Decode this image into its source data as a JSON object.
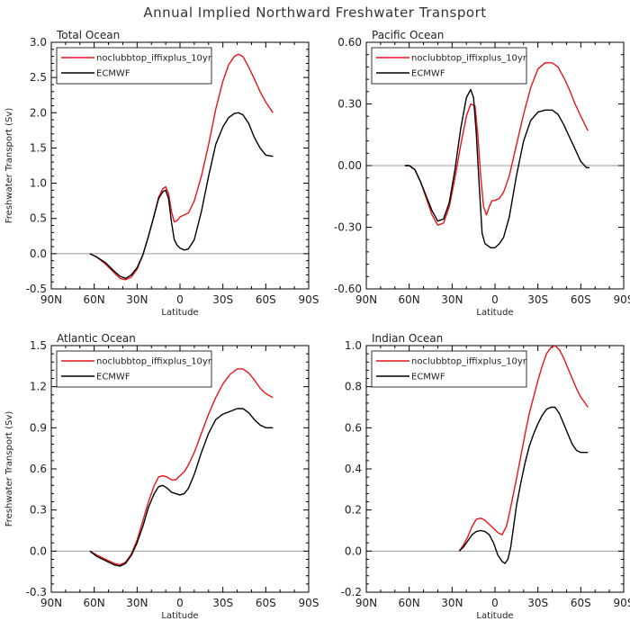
{
  "figure": {
    "title": "Annual Implied Northward Freshwater Transport"
  },
  "colors": {
    "model": "#e8141a",
    "obs": "#000000",
    "zero_line": "#999999"
  },
  "chart_data": [
    {
      "type": "line",
      "title": "Total Ocean",
      "xlabel": "Latitude",
      "ylabel": "Freshwater Transport (Sv)",
      "xlim": [
        90,
        -90
      ],
      "ylim": [
        -0.5,
        3.0
      ],
      "xticks": [
        90,
        60,
        30,
        0,
        -30,
        -60,
        -90
      ],
      "xtick_labels": [
        "90N",
        "60N",
        "30N",
        "0",
        "30S",
        "60S",
        "90S"
      ],
      "yticks": [
        -0.5,
        0.0,
        0.5,
        1.0,
        1.5,
        2.0,
        2.5,
        3.0
      ],
      "ytick_labels": [
        "-0.5",
        "0.0",
        "0.5",
        "1.0",
        "1.5",
        "2.0",
        "2.5",
        "3.0"
      ],
      "grid": false,
      "legend": "top-left",
      "series": [
        {
          "name": "noclubbtop_iffixplus_10yr",
          "color": "#e8141a",
          "x": [
            63,
            58,
            52,
            46,
            42,
            38,
            34,
            30,
            26,
            22,
            18,
            15,
            12,
            10,
            8,
            6,
            4,
            2,
            0,
            -3,
            -6,
            -10,
            -15,
            -20,
            -25,
            -30,
            -34,
            -38,
            -41,
            -44,
            -48,
            -52,
            -56,
            -60,
            -65
          ],
          "y": [
            0.0,
            -0.05,
            -0.15,
            -0.27,
            -0.35,
            -0.37,
            -0.33,
            -0.22,
            -0.02,
            0.25,
            0.55,
            0.8,
            0.92,
            0.95,
            0.85,
            0.6,
            0.45,
            0.47,
            0.52,
            0.55,
            0.58,
            0.75,
            1.1,
            1.55,
            2.05,
            2.45,
            2.68,
            2.8,
            2.83,
            2.8,
            2.65,
            2.48,
            2.3,
            2.15,
            2.0
          ]
        },
        {
          "name": "ECMWF",
          "color": "#000000",
          "x": [
            63,
            58,
            52,
            46,
            42,
            38,
            34,
            30,
            26,
            22,
            18,
            15,
            12,
            10,
            8,
            6,
            4,
            2,
            0,
            -3,
            -6,
            -10,
            -15,
            -20,
            -25,
            -30,
            -34,
            -38,
            -41,
            -44,
            -48,
            -52,
            -56,
            -60,
            -65
          ],
          "y": [
            0.0,
            -0.05,
            -0.13,
            -0.25,
            -0.32,
            -0.35,
            -0.3,
            -0.2,
            -0.02,
            0.25,
            0.55,
            0.78,
            0.88,
            0.9,
            0.78,
            0.45,
            0.2,
            0.12,
            0.08,
            0.05,
            0.07,
            0.2,
            0.6,
            1.1,
            1.55,
            1.8,
            1.93,
            1.99,
            2.0,
            1.97,
            1.85,
            1.65,
            1.5,
            1.4,
            1.38
          ]
        }
      ]
    },
    {
      "type": "line",
      "title": "Pacific Ocean",
      "xlabel": "Latitude",
      "ylabel": "",
      "xlim": [
        90,
        -90
      ],
      "ylim": [
        -0.6,
        0.6
      ],
      "xticks": [
        90,
        60,
        30,
        0,
        -30,
        -60,
        -90
      ],
      "xtick_labels": [
        "90N",
        "60N",
        "30N",
        "0",
        "30S",
        "60S",
        "90S"
      ],
      "yticks": [
        -0.6,
        -0.3,
        0.0,
        0.3,
        0.6
      ],
      "ytick_labels": [
        "-0.60",
        "-0.30",
        "0.00",
        "0.30",
        "0.60"
      ],
      "grid": false,
      "legend": "top-left",
      "series": [
        {
          "name": "noclubbtop_iffixplus_10yr",
          "color": "#e8141a",
          "x": [
            63,
            60,
            56,
            52,
            48,
            44,
            40,
            36,
            32,
            28,
            24,
            20,
            17,
            14,
            12,
            10,
            8,
            6,
            4,
            2,
            0,
            -3,
            -6,
            -10,
            -15,
            -20,
            -25,
            -30,
            -35,
            -40,
            -44,
            -48,
            -52,
            -56,
            -60,
            -65
          ],
          "y": [
            0.0,
            0.0,
            -0.02,
            -0.08,
            -0.16,
            -0.24,
            -0.29,
            -0.28,
            -0.2,
            -0.06,
            0.1,
            0.24,
            0.3,
            0.29,
            0.15,
            -0.05,
            -0.2,
            -0.24,
            -0.2,
            -0.17,
            -0.17,
            -0.16,
            -0.13,
            -0.05,
            0.1,
            0.25,
            0.38,
            0.47,
            0.5,
            0.5,
            0.48,
            0.43,
            0.37,
            0.3,
            0.24,
            0.17
          ]
        },
        {
          "name": "ECMWF",
          "color": "#000000",
          "x": [
            63,
            60,
            56,
            52,
            48,
            44,
            40,
            36,
            32,
            28,
            24,
            20,
            17,
            15,
            13,
            11,
            9,
            7,
            5,
            3,
            0,
            -3,
            -6,
            -10,
            -15,
            -20,
            -25,
            -30,
            -35,
            -40,
            -44,
            -48,
            -52,
            -56,
            -60,
            -64,
            -66
          ],
          "y": [
            0.0,
            0.0,
            -0.02,
            -0.08,
            -0.15,
            -0.22,
            -0.27,
            -0.26,
            -0.18,
            -0.02,
            0.18,
            0.33,
            0.37,
            0.33,
            0.15,
            -0.1,
            -0.33,
            -0.38,
            -0.39,
            -0.4,
            -0.4,
            -0.38,
            -0.35,
            -0.25,
            -0.05,
            0.12,
            0.22,
            0.26,
            0.27,
            0.27,
            0.25,
            0.2,
            0.14,
            0.08,
            0.02,
            -0.01,
            -0.01
          ]
        }
      ]
    },
    {
      "type": "line",
      "title": "Atlantic Ocean",
      "xlabel": "Latitude",
      "ylabel": "Freshwater Transport (Sv)",
      "xlim": [
        90,
        -90
      ],
      "ylim": [
        -0.3,
        1.5
      ],
      "xticks": [
        90,
        60,
        30,
        0,
        -30,
        -60,
        -90
      ],
      "xtick_labels": [
        "90N",
        "60N",
        "30N",
        "0",
        "30S",
        "60S",
        "90S"
      ],
      "yticks": [
        -0.3,
        0.0,
        0.3,
        0.6,
        0.9,
        1.2,
        1.5
      ],
      "ytick_labels": [
        "-0.3",
        "0.0",
        "0.3",
        "0.6",
        "0.9",
        "1.2",
        "1.5"
      ],
      "grid": false,
      "legend": "top-left",
      "series": [
        {
          "name": "noclubbtop_iffixplus_10yr",
          "color": "#e8141a",
          "x": [
            63,
            58,
            52,
            46,
            42,
            38,
            34,
            30,
            26,
            22,
            18,
            15,
            12,
            9,
            6,
            3,
            0,
            -3,
            -6,
            -10,
            -15,
            -20,
            -25,
            -30,
            -35,
            -40,
            -44,
            -48,
            -52,
            -56,
            -60,
            -65
          ],
          "y": [
            0.0,
            -0.03,
            -0.06,
            -0.09,
            -0.1,
            -0.08,
            -0.02,
            0.08,
            0.22,
            0.36,
            0.48,
            0.54,
            0.55,
            0.54,
            0.52,
            0.52,
            0.55,
            0.58,
            0.63,
            0.72,
            0.86,
            1.0,
            1.12,
            1.22,
            1.29,
            1.33,
            1.33,
            1.3,
            1.25,
            1.19,
            1.15,
            1.12
          ]
        },
        {
          "name": "ECMWF",
          "color": "#000000",
          "x": [
            63,
            58,
            52,
            46,
            42,
            38,
            34,
            30,
            26,
            22,
            18,
            15,
            12,
            9,
            6,
            3,
            0,
            -3,
            -6,
            -10,
            -15,
            -20,
            -25,
            -30,
            -35,
            -40,
            -44,
            -48,
            -52,
            -56,
            -60,
            -65
          ],
          "y": [
            0.0,
            -0.04,
            -0.07,
            -0.1,
            -0.11,
            -0.09,
            -0.03,
            0.06,
            0.18,
            0.32,
            0.42,
            0.47,
            0.48,
            0.46,
            0.43,
            0.42,
            0.41,
            0.42,
            0.46,
            0.56,
            0.72,
            0.86,
            0.96,
            1.0,
            1.02,
            1.04,
            1.04,
            1.01,
            0.96,
            0.92,
            0.9,
            0.9
          ]
        }
      ]
    },
    {
      "type": "line",
      "title": "Indian Ocean",
      "xlabel": "Latitude",
      "ylabel": "",
      "xlim": [
        90,
        -90
      ],
      "ylim": [
        -0.2,
        1.0
      ],
      "xticks": [
        90,
        60,
        30,
        0,
        -30,
        -60,
        -90
      ],
      "xtick_labels": [
        "90N",
        "60N",
        "30N",
        "0",
        "30S",
        "60S",
        "90S"
      ],
      "yticks": [
        -0.2,
        0.0,
        0.2,
        0.4,
        0.6,
        0.8,
        1.0
      ],
      "ytick_labels": [
        "-0.2",
        "0.0",
        "0.2",
        "0.4",
        "0.6",
        "0.8",
        "1.0"
      ],
      "grid": false,
      "legend": "top-left",
      "series": [
        {
          "name": "noclubbtop_iffixplus_10yr",
          "color": "#e8141a",
          "x": [
            25,
            22,
            19,
            16,
            13,
            10,
            7,
            4,
            1,
            -2,
            -5,
            -8,
            -10,
            -12,
            -15,
            -18,
            -21,
            -24,
            -27,
            -30,
            -33,
            -36,
            -39,
            -42,
            -45,
            -48,
            -51,
            -54,
            -57,
            -60,
            -63,
            -65
          ],
          "y": [
            0.0,
            0.03,
            0.07,
            0.12,
            0.155,
            0.16,
            0.15,
            0.13,
            0.11,
            0.09,
            0.08,
            0.12,
            0.18,
            0.25,
            0.35,
            0.46,
            0.57,
            0.67,
            0.75,
            0.83,
            0.9,
            0.96,
            0.99,
            1.0,
            0.98,
            0.94,
            0.89,
            0.84,
            0.79,
            0.75,
            0.72,
            0.7
          ]
        },
        {
          "name": "ECMWF",
          "color": "#000000",
          "x": [
            25,
            22,
            19,
            16,
            13,
            10,
            7,
            4,
            1,
            -2,
            -5,
            -7,
            -9,
            -11,
            -13,
            -15,
            -18,
            -21,
            -24,
            -27,
            -30,
            -33,
            -36,
            -39,
            -42,
            -45,
            -48,
            -51,
            -54,
            -57,
            -60,
            -63,
            -65
          ],
          "y": [
            0.0,
            0.02,
            0.05,
            0.08,
            0.095,
            0.1,
            0.095,
            0.08,
            0.04,
            -0.02,
            -0.05,
            -0.06,
            -0.04,
            0.02,
            0.12,
            0.22,
            0.33,
            0.43,
            0.51,
            0.57,
            0.62,
            0.66,
            0.69,
            0.7,
            0.7,
            0.67,
            0.62,
            0.57,
            0.52,
            0.49,
            0.48,
            0.48,
            0.48
          ]
        }
      ]
    }
  ]
}
